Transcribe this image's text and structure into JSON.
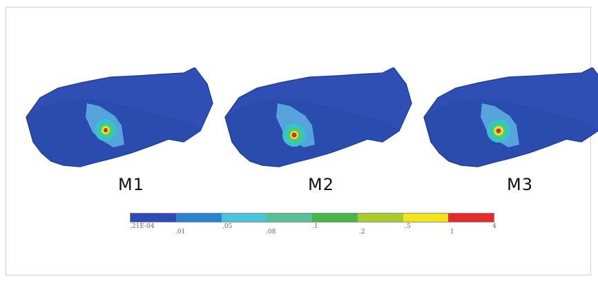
{
  "labels": {
    "m1": "M1",
    "m2": "M2",
    "m3": "M3"
  },
  "legend": {
    "colors": [
      "#2d4bb3",
      "#2a82d1",
      "#4ac4d8",
      "#58bf96",
      "#49b649",
      "#a8cc2c",
      "#f1e61b",
      "#e52b2b"
    ],
    "ticks": [
      ".21E-04",
      ".01",
      ".05",
      ".08",
      ".1",
      ".2",
      ".5",
      "1",
      "4"
    ]
  },
  "colors": {
    "background": "#ffffff",
    "frame": "#cfcfcf",
    "body": "#2f4fb5",
    "body_dark": "#2646a6",
    "outline": "#233f98",
    "halo": "#59a8df",
    "ring1": "#36c2d0",
    "ring2": "#4fcb6e",
    "ring3": "#d3e63a",
    "core": "#e32727"
  }
}
